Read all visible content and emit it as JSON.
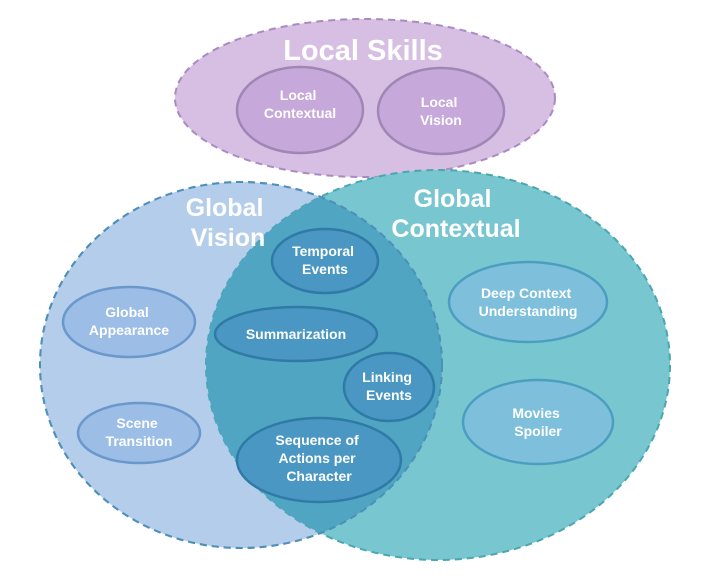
{
  "colors": {
    "local_fill": "#d6bfe3",
    "local_stroke": "#a98bc2",
    "local_sub_fill": "#c6a8da",
    "local_sub_stroke": "#9f86b5",
    "vision_fill": "#b3cdeb",
    "vision_stroke": "#7aa0cd",
    "contextual_fill": "#78c6cf",
    "contextual_stroke": "#4aa6b1",
    "overlap_fill": "#4fa5c2",
    "node_fill_vision": "#9bbde6",
    "node_stroke_vision": "#6b98cc",
    "node_fill_context": "#7ec0dc",
    "node_stroke_context": "#4c9ec0",
    "node_fill_overlap": "#4997c2",
    "node_stroke_overlap": "#2f7aa6"
  },
  "groups": {
    "local_skills": {
      "title": "Local Skills"
    },
    "global_vision": {
      "title_line1": "Global",
      "title_line2": "Vision"
    },
    "global_contextual": {
      "title_line1": "Global",
      "title_line2": "Contextual"
    }
  },
  "nodes": {
    "local_contextual": [
      "Local",
      "Contextual"
    ],
    "local_vision": [
      "Local",
      "Vision"
    ],
    "global_appearance": [
      "Global",
      "Appearance"
    ],
    "scene_transition": [
      "Scene",
      "Transition"
    ],
    "temporal_events": [
      "Temporal",
      "Events"
    ],
    "summarization": [
      "Summarization"
    ],
    "linking_events": [
      "Linking",
      "Events"
    ],
    "sequence_actions": [
      "Sequence of",
      "Actions per",
      "Character"
    ],
    "deep_context": [
      "Deep Context",
      "Understanding"
    ],
    "movies_spoiler": [
      "Movies",
      "Spoiler"
    ]
  }
}
